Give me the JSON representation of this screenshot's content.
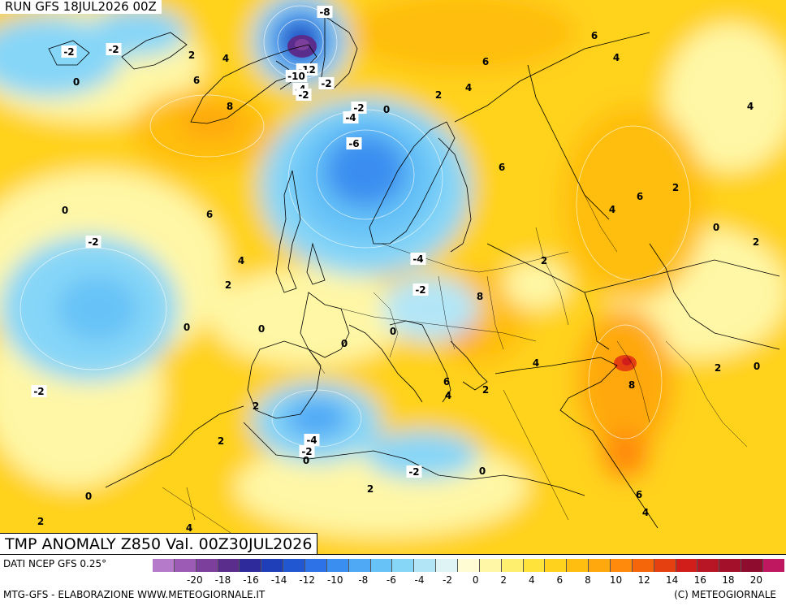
{
  "run_label": "RUN GFS 18JUL2026 00Z",
  "title": "TMP ANOMALY Z850 Val. 00Z30JUL2026",
  "credit_source": "DATI NCEP GFS 0.25°",
  "credit_elaboration": "MTG-GFS - ELABORAZIONE WWW.METEOGIORNALE.IT",
  "credit_copyright": "(C) METEOGIORNALE",
  "legend": {
    "colors": [
      "#b57ac9",
      "#9c5bb5",
      "#7d3f9c",
      "#5a2d8c",
      "#2f2a9c",
      "#1e3fb8",
      "#2257d2",
      "#2d72e6",
      "#3a8ef0",
      "#4fa9f5",
      "#66c2f7",
      "#86d6f8",
      "#b2e6f7",
      "#dff4f5",
      "#fffbd2",
      "#fff7a6",
      "#ffef6e",
      "#ffe23a",
      "#ffd21e",
      "#ffbe10",
      "#ffa80e",
      "#ff8a0c",
      "#f5650a",
      "#e54010",
      "#d21e1a",
      "#b81624",
      "#a2102a",
      "#8e0c2e",
      "#c01860"
    ],
    "tick_labels": [
      "-20",
      "-18",
      "-16",
      "-14",
      "-12",
      "-10",
      "-8",
      "-6",
      "-4",
      "-2",
      "0",
      "2",
      "4",
      "6",
      "8",
      "10",
      "12",
      "14",
      "16",
      "18",
      "20"
    ],
    "tick_values": [
      -20,
      -18,
      -16,
      -14,
      -12,
      -10,
      -8,
      -6,
      -4,
      -2,
      0,
      2,
      4,
      6,
      8,
      10,
      12,
      14,
      16,
      18,
      20
    ]
  },
  "contour_labels": [
    {
      "text": "-8"
    },
    {
      "text": "-2"
    },
    {
      "text": "-2"
    },
    {
      "text": "2"
    },
    {
      "text": "4"
    },
    {
      "text": "6"
    },
    {
      "text": "0"
    },
    {
      "text": "-12"
    },
    {
      "text": "-10"
    },
    {
      "text": "-4"
    },
    {
      "text": "-2"
    },
    {
      "text": "-2"
    },
    {
      "text": "8"
    },
    {
      "text": "6"
    },
    {
      "text": "4"
    },
    {
      "text": "6"
    },
    {
      "text": "4"
    },
    {
      "text": "2"
    },
    {
      "text": "-2"
    },
    {
      "text": "-4"
    },
    {
      "text": "0"
    },
    {
      "text": "-6"
    },
    {
      "text": "6"
    },
    {
      "text": "4"
    },
    {
      "text": "2"
    },
    {
      "text": "6"
    },
    {
      "text": "4"
    },
    {
      "text": "0"
    },
    {
      "text": "2"
    },
    {
      "text": "0"
    },
    {
      "text": "6"
    },
    {
      "text": "-2"
    },
    {
      "text": "4"
    },
    {
      "text": "2"
    },
    {
      "text": "-4"
    },
    {
      "text": "2"
    },
    {
      "text": "-2"
    },
    {
      "text": "8"
    },
    {
      "text": "0"
    },
    {
      "text": "0"
    },
    {
      "text": "0"
    },
    {
      "text": "0"
    },
    {
      "text": "4"
    },
    {
      "text": "8"
    },
    {
      "text": "2"
    },
    {
      "text": "0"
    },
    {
      "text": "-2"
    },
    {
      "text": "2"
    },
    {
      "text": "6"
    },
    {
      "text": "4"
    },
    {
      "text": "2"
    },
    {
      "text": "2"
    },
    {
      "text": "-4"
    },
    {
      "text": "-2"
    },
    {
      "text": "0"
    },
    {
      "text": "-2"
    },
    {
      "text": "0"
    },
    {
      "text": "0"
    },
    {
      "text": "2"
    },
    {
      "text": "2"
    },
    {
      "text": "4"
    },
    {
      "text": "6"
    },
    {
      "text": "4"
    }
  ]
}
